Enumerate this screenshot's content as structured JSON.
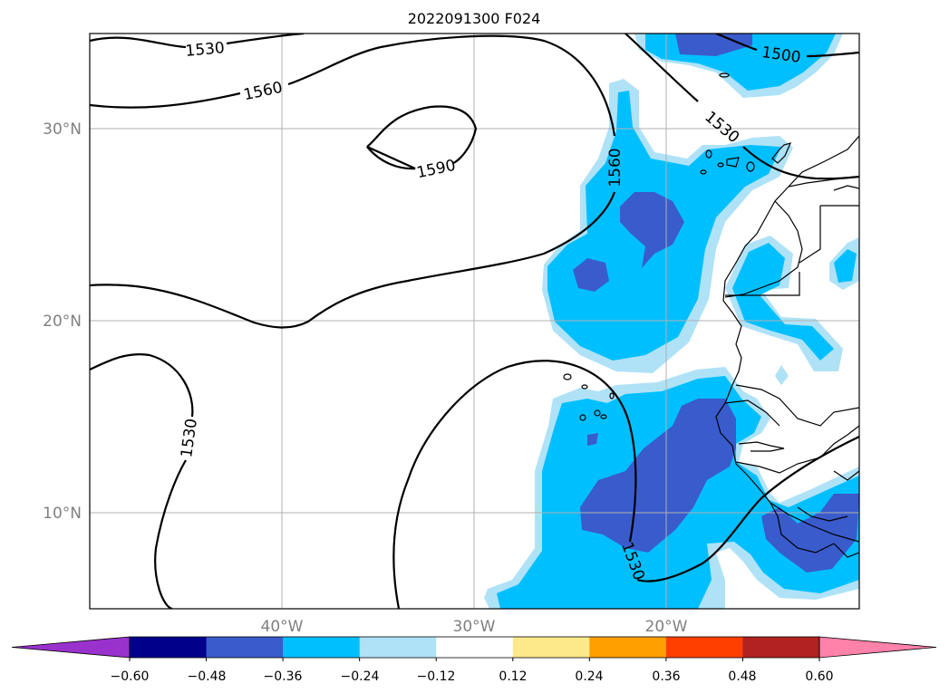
{
  "title": "2022091300 F024",
  "map": {
    "lat_labels": [
      "30°N",
      "20°N",
      "10°N"
    ],
    "lon_labels": [
      "40°W",
      "30°W",
      "20°W"
    ],
    "contour_labels": [
      "1530",
      "1560",
      "1590",
      "1560",
      "1500",
      "1530",
      "1530",
      "1530"
    ]
  },
  "colorbar": {
    "ticks": [
      "−0.60",
      "−0.48",
      "−0.36",
      "−0.24",
      "−0.12",
      "0.12",
      "0.24",
      "0.36",
      "0.48",
      "0.60"
    ],
    "colors": [
      "#9932cc",
      "#00008b",
      "#3a5bcc",
      "#00bfff",
      "#afe2f7",
      "#ffffff",
      "#fde98a",
      "#ff9f00",
      "#ff3f00",
      "#b22222",
      "#ff82ab"
    ],
    "extend": "both"
  },
  "fill_colors": {
    "dark": "#3a5bcc",
    "mid": "#00bfff",
    "light": "#afe2f7"
  },
  "grid": true
}
